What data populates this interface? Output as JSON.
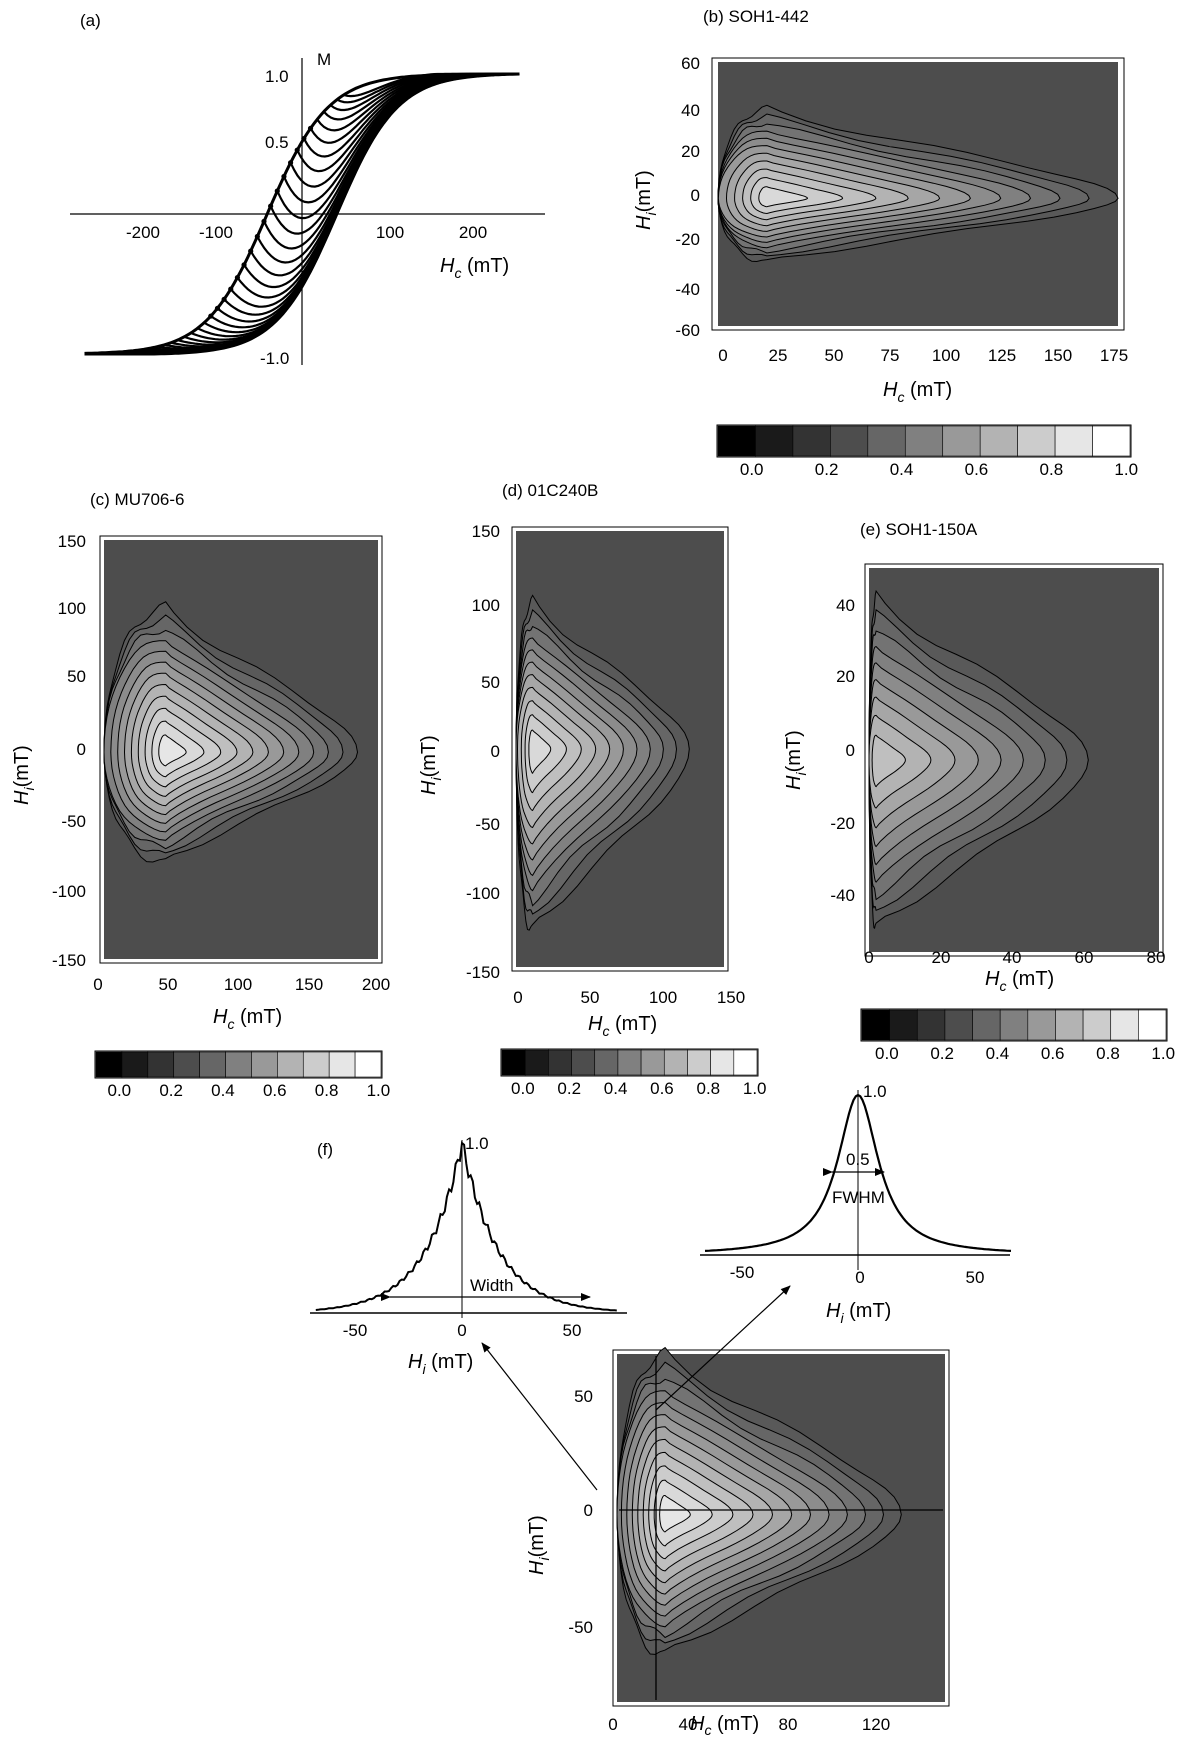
{
  "colorbar": {
    "colors": [
      "#000000",
      "#1a1a1a",
      "#333333",
      "#4d4d4d",
      "#666666",
      "#808080",
      "#999999",
      "#b3b3b3",
      "#cccccc",
      "#e6e6e6",
      "#ffffff"
    ],
    "ticks": [
      "0.0",
      "0.2",
      "0.4",
      "0.6",
      "0.8",
      "1.0"
    ]
  },
  "chart_data": [
    {
      "panel": "(a)",
      "type": "line",
      "xlabel": "H_c (mT)",
      "ylabel": "M",
      "xlim": [
        -260,
        280
      ],
      "ylim": [
        -1.05,
        1.05
      ],
      "xticks": [
        "-200",
        "-100",
        "100",
        "200"
      ],
      "yticks": [
        "1.0",
        "0.5",
        "-1.0"
      ],
      "description": "family of first-order reversal curves",
      "curve_count": 40,
      "saturation_field_mT": 250,
      "coercivity_mT": 40
    },
    {
      "panel": "(b)",
      "title": "SOH1-442",
      "type": "heatmap",
      "xlabel": "H_c (mT)",
      "ylabel": "H_i (mT)",
      "xlim": [
        0,
        180
      ],
      "ylim": [
        -62,
        62
      ],
      "xticks": [
        "0",
        "25",
        "50",
        "75",
        "100",
        "125",
        "150",
        "175"
      ],
      "yticks": [
        "60",
        "40",
        "20",
        "0",
        "-20",
        "-40",
        "-60"
      ],
      "peak": {
        "hc": 22,
        "hi": -2
      },
      "outer_extent_hc": 180,
      "outer_extent_hi": [
        -30,
        40
      ]
    },
    {
      "panel": "(c)",
      "title": "MU706-6",
      "type": "heatmap",
      "xlabel": "H_c (mT)",
      "ylabel": "H_i (mT)",
      "xlim": [
        0,
        200
      ],
      "ylim": [
        -155,
        155
      ],
      "xticks": [
        "0",
        "50",
        "100",
        "150",
        "200"
      ],
      "yticks": [
        "150",
        "100",
        "50",
        "0",
        "-50",
        "-100",
        "-150"
      ],
      "peak": {
        "hc": 45,
        "hi": -2
      },
      "outer_extent_hc": 185,
      "outer_extent_hi": [
        -80,
        105
      ]
    },
    {
      "panel": "(d)",
      "title": "01C240B",
      "type": "heatmap",
      "xlabel": "H_c (mT)",
      "ylabel": "H_i (mT)",
      "xlim": [
        0,
        150
      ],
      "ylim": [
        -155,
        155
      ],
      "xticks": [
        "0",
        "50",
        "100",
        "150"
      ],
      "yticks": [
        "150",
        "100",
        "50",
        "0",
        "-50",
        "-100",
        "-150"
      ],
      "peak": {
        "hc": 12,
        "hi": 0
      },
      "outer_extent_hc": 125,
      "outer_extent_hi": [
        -130,
        105
      ]
    },
    {
      "panel": "(e)",
      "title": "SOH1-150A",
      "type": "heatmap",
      "xlabel": "H_c (mT)",
      "ylabel": "H_i (mT)",
      "xlim": [
        0,
        82
      ],
      "ylim": [
        -52,
        52
      ],
      "xticks": [
        "0",
        "20",
        "40",
        "60",
        "80"
      ],
      "yticks": [
        "40",
        "20",
        "0",
        "-20",
        "-40"
      ],
      "peak": {
        "hc": 2,
        "hi": 0
      },
      "outer_extent_hc": 62,
      "outer_extent_hi": [
        -45,
        43
      ]
    },
    {
      "panel": "(f) left profile",
      "type": "line",
      "xlabel": "H_i (mT)",
      "xlim": [
        -70,
        75
      ],
      "xticks": [
        "-50",
        "0",
        "50"
      ],
      "peak_label": "1.0",
      "annotation": "Width",
      "width_limits": [
        -35,
        50
      ]
    },
    {
      "panel": "(f) right profile",
      "type": "line",
      "xlabel": "H_i (mT)",
      "xlim": [
        -70,
        70
      ],
      "xticks": [
        "-50",
        "0",
        "50"
      ],
      "peak_label": "1.0",
      "annotations": [
        "0.5",
        "FWHM"
      ],
      "fwhm_limits": [
        -12,
        12
      ]
    },
    {
      "panel": "(f) map",
      "type": "heatmap",
      "xlabel": "H_c (mT)",
      "ylabel": "H_i (mT)",
      "xlim": [
        0,
        150
      ],
      "ylim": [
        -75,
        68
      ],
      "xticks": [
        "0",
        "40",
        "80",
        "120"
      ],
      "yticks": [
        "50",
        "0",
        "-50"
      ],
      "peak": {
        "hc": 22,
        "hi": 2
      },
      "profile_line_hc": 22,
      "profile_line_hi": 0
    }
  ]
}
